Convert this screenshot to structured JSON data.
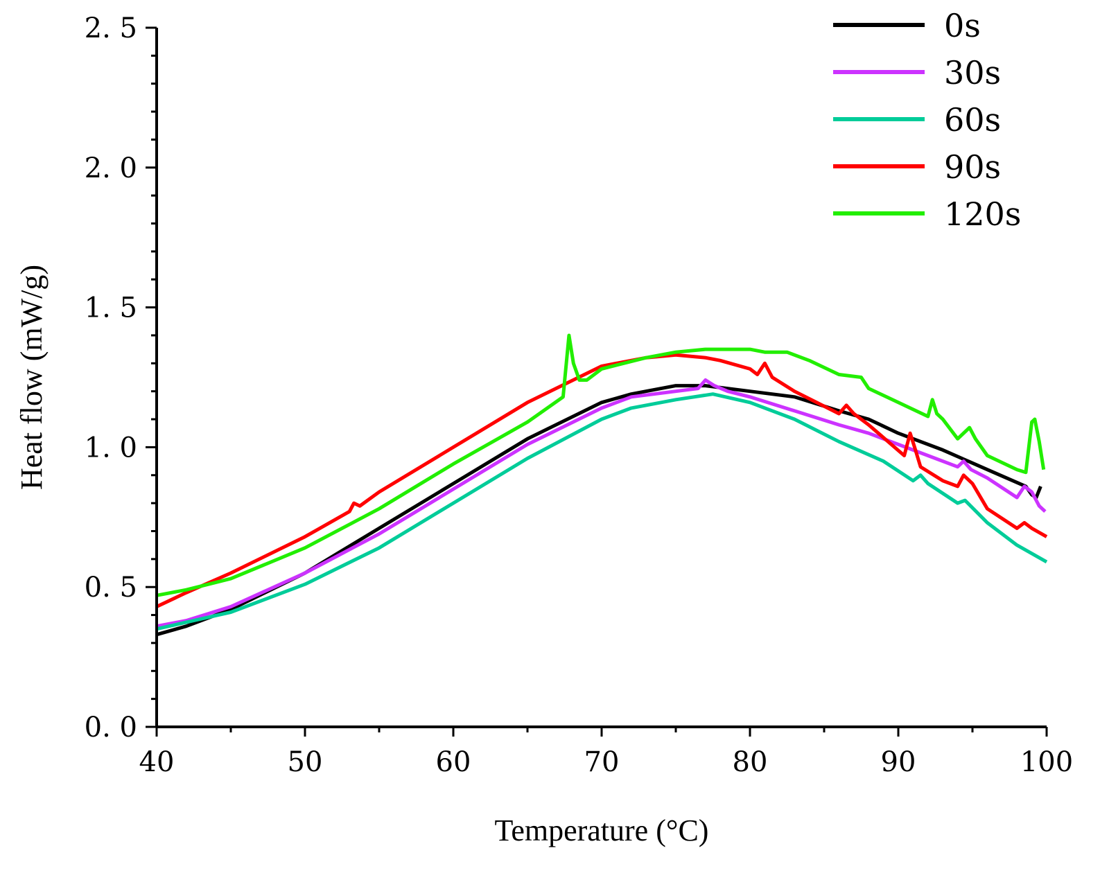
{
  "chart_data": {
    "type": "line",
    "title": "",
    "xlabel": "Temperature (°C)",
    "ylabel": "Heat flow (mW/g)",
    "xlim": [
      40,
      100
    ],
    "ylim": [
      0.0,
      2.5
    ],
    "xticks": [
      40,
      50,
      60,
      70,
      80,
      90,
      100
    ],
    "xtick_labels": [
      "40",
      "50",
      "60",
      "70",
      "80",
      "90",
      "100"
    ],
    "yticks": [
      0.0,
      0.5,
      1.0,
      1.5,
      2.0,
      2.5
    ],
    "ytick_labels": [
      "0. 0",
      "0. 5",
      "1. 0",
      "1. 5",
      "2. 0",
      "2. 5"
    ],
    "grid": false,
    "legend_position": "top-right",
    "series": [
      {
        "name": "0s",
        "color": "#000000",
        "x": [
          40,
          42,
          45,
          50,
          55,
          60,
          65,
          70,
          72,
          75,
          77,
          80,
          83,
          86,
          88,
          90,
          93,
          96,
          98.6,
          99,
          99.3,
          99.6
        ],
        "y": [
          0.33,
          0.36,
          0.42,
          0.55,
          0.71,
          0.87,
          1.03,
          1.16,
          1.19,
          1.22,
          1.22,
          1.2,
          1.18,
          1.13,
          1.1,
          1.05,
          0.99,
          0.92,
          0.86,
          0.83,
          0.82,
          0.86
        ]
      },
      {
        "name": "30s",
        "color": "#cc33ff",
        "x": [
          40,
          42,
          45,
          50,
          55,
          60,
          65,
          70,
          72,
          75,
          76.5,
          77,
          77.6,
          78.5,
          80,
          83,
          86,
          88,
          90,
          92,
          94,
          94.4,
          94.9,
          96,
          98,
          98.5,
          99,
          99.5,
          99.9
        ],
        "y": [
          0.36,
          0.38,
          0.43,
          0.55,
          0.69,
          0.85,
          1.01,
          1.14,
          1.18,
          1.2,
          1.21,
          1.24,
          1.22,
          1.2,
          1.18,
          1.13,
          1.08,
          1.05,
          1.01,
          0.97,
          0.93,
          0.95,
          0.92,
          0.89,
          0.82,
          0.86,
          0.84,
          0.79,
          0.77
        ]
      },
      {
        "name": "60s",
        "color": "#00cc99",
        "x": [
          40,
          45,
          50,
          55,
          60,
          65,
          70,
          72,
          75,
          77.5,
          80,
          83,
          86,
          89,
          91,
          91.5,
          92,
          94,
          94.5,
          96,
          98,
          99,
          100
        ],
        "y": [
          0.35,
          0.41,
          0.51,
          0.64,
          0.8,
          0.96,
          1.1,
          1.14,
          1.17,
          1.19,
          1.16,
          1.1,
          1.02,
          0.95,
          0.88,
          0.9,
          0.87,
          0.8,
          0.81,
          0.73,
          0.65,
          0.62,
          0.59
        ]
      },
      {
        "name": "90s",
        "color": "#ff0000",
        "x": [
          40,
          42,
          45,
          50,
          53,
          53.3,
          53.7,
          55,
          60,
          65,
          70,
          73,
          75,
          77,
          78,
          80,
          80.5,
          81,
          81.5,
          83,
          86,
          86.5,
          87,
          88,
          90.4,
          90.8,
          91.1,
          91.5,
          93,
          94,
          94.4,
          95,
          96,
          98,
          98.5,
          99,
          100
        ],
        "y": [
          0.43,
          0.48,
          0.55,
          0.68,
          0.77,
          0.8,
          0.79,
          0.84,
          1.0,
          1.16,
          1.29,
          1.32,
          1.33,
          1.32,
          1.31,
          1.28,
          1.26,
          1.3,
          1.25,
          1.2,
          1.12,
          1.15,
          1.12,
          1.08,
          0.97,
          1.05,
          1.0,
          0.93,
          0.88,
          0.86,
          0.9,
          0.87,
          0.78,
          0.71,
          0.73,
          0.71,
          0.68
        ]
      },
      {
        "name": "120s",
        "color": "#22ee00",
        "x": [
          40,
          42,
          45,
          50,
          55,
          60,
          65,
          67.4,
          67.8,
          68.1,
          68.5,
          69,
          70,
          73,
          75,
          77,
          80,
          81,
          82.5,
          84,
          86,
          87.5,
          88,
          90,
          92,
          92.3,
          92.6,
          93,
          94,
          94.8,
          95.2,
          96,
          98,
          98.6,
          99,
          99.2,
          99.5,
          99.8
        ],
        "y": [
          0.47,
          0.49,
          0.53,
          0.64,
          0.78,
          0.94,
          1.09,
          1.18,
          1.4,
          1.3,
          1.24,
          1.24,
          1.28,
          1.32,
          1.34,
          1.35,
          1.35,
          1.34,
          1.34,
          1.31,
          1.26,
          1.25,
          1.21,
          1.16,
          1.11,
          1.17,
          1.12,
          1.1,
          1.03,
          1.07,
          1.03,
          0.97,
          0.92,
          0.91,
          1.09,
          1.1,
          1.02,
          0.92
        ]
      }
    ]
  }
}
